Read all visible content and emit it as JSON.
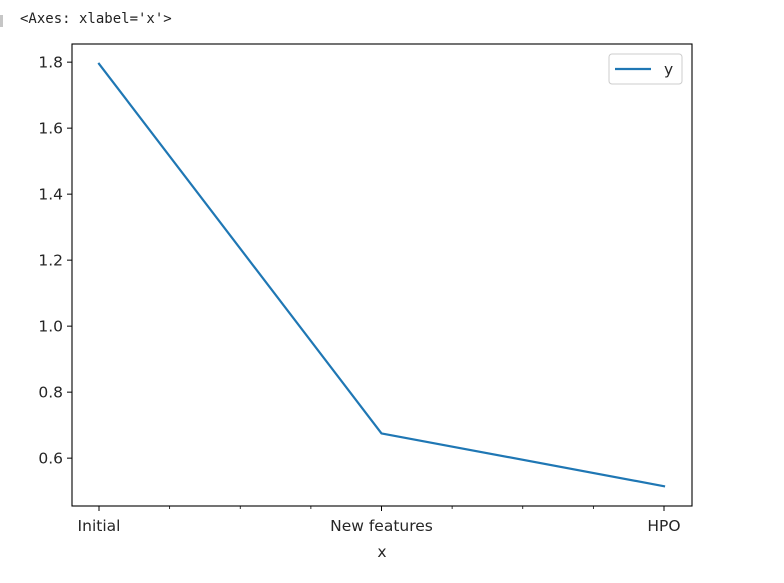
{
  "output": {
    "repr_text": "<Axes: xlabel='x'>"
  },
  "chart_data": {
    "type": "line",
    "categories": [
      "Initial",
      "New features",
      "HPO"
    ],
    "series": [
      {
        "name": "y",
        "values": [
          1.795,
          0.675,
          0.515
        ],
        "color": "#1f77b4"
      }
    ],
    "xlabel": "x",
    "ylabel": "",
    "ylim": [
      0.455,
      1.855
    ],
    "yticks": [
      0.6,
      0.8,
      1.0,
      1.2,
      1.4,
      1.6,
      1.8
    ],
    "ytick_labels": [
      "0.6",
      "0.8",
      "1.0",
      "1.2",
      "1.4",
      "1.6",
      "1.8"
    ],
    "legend": {
      "position": "top-right"
    },
    "grid": false
  }
}
